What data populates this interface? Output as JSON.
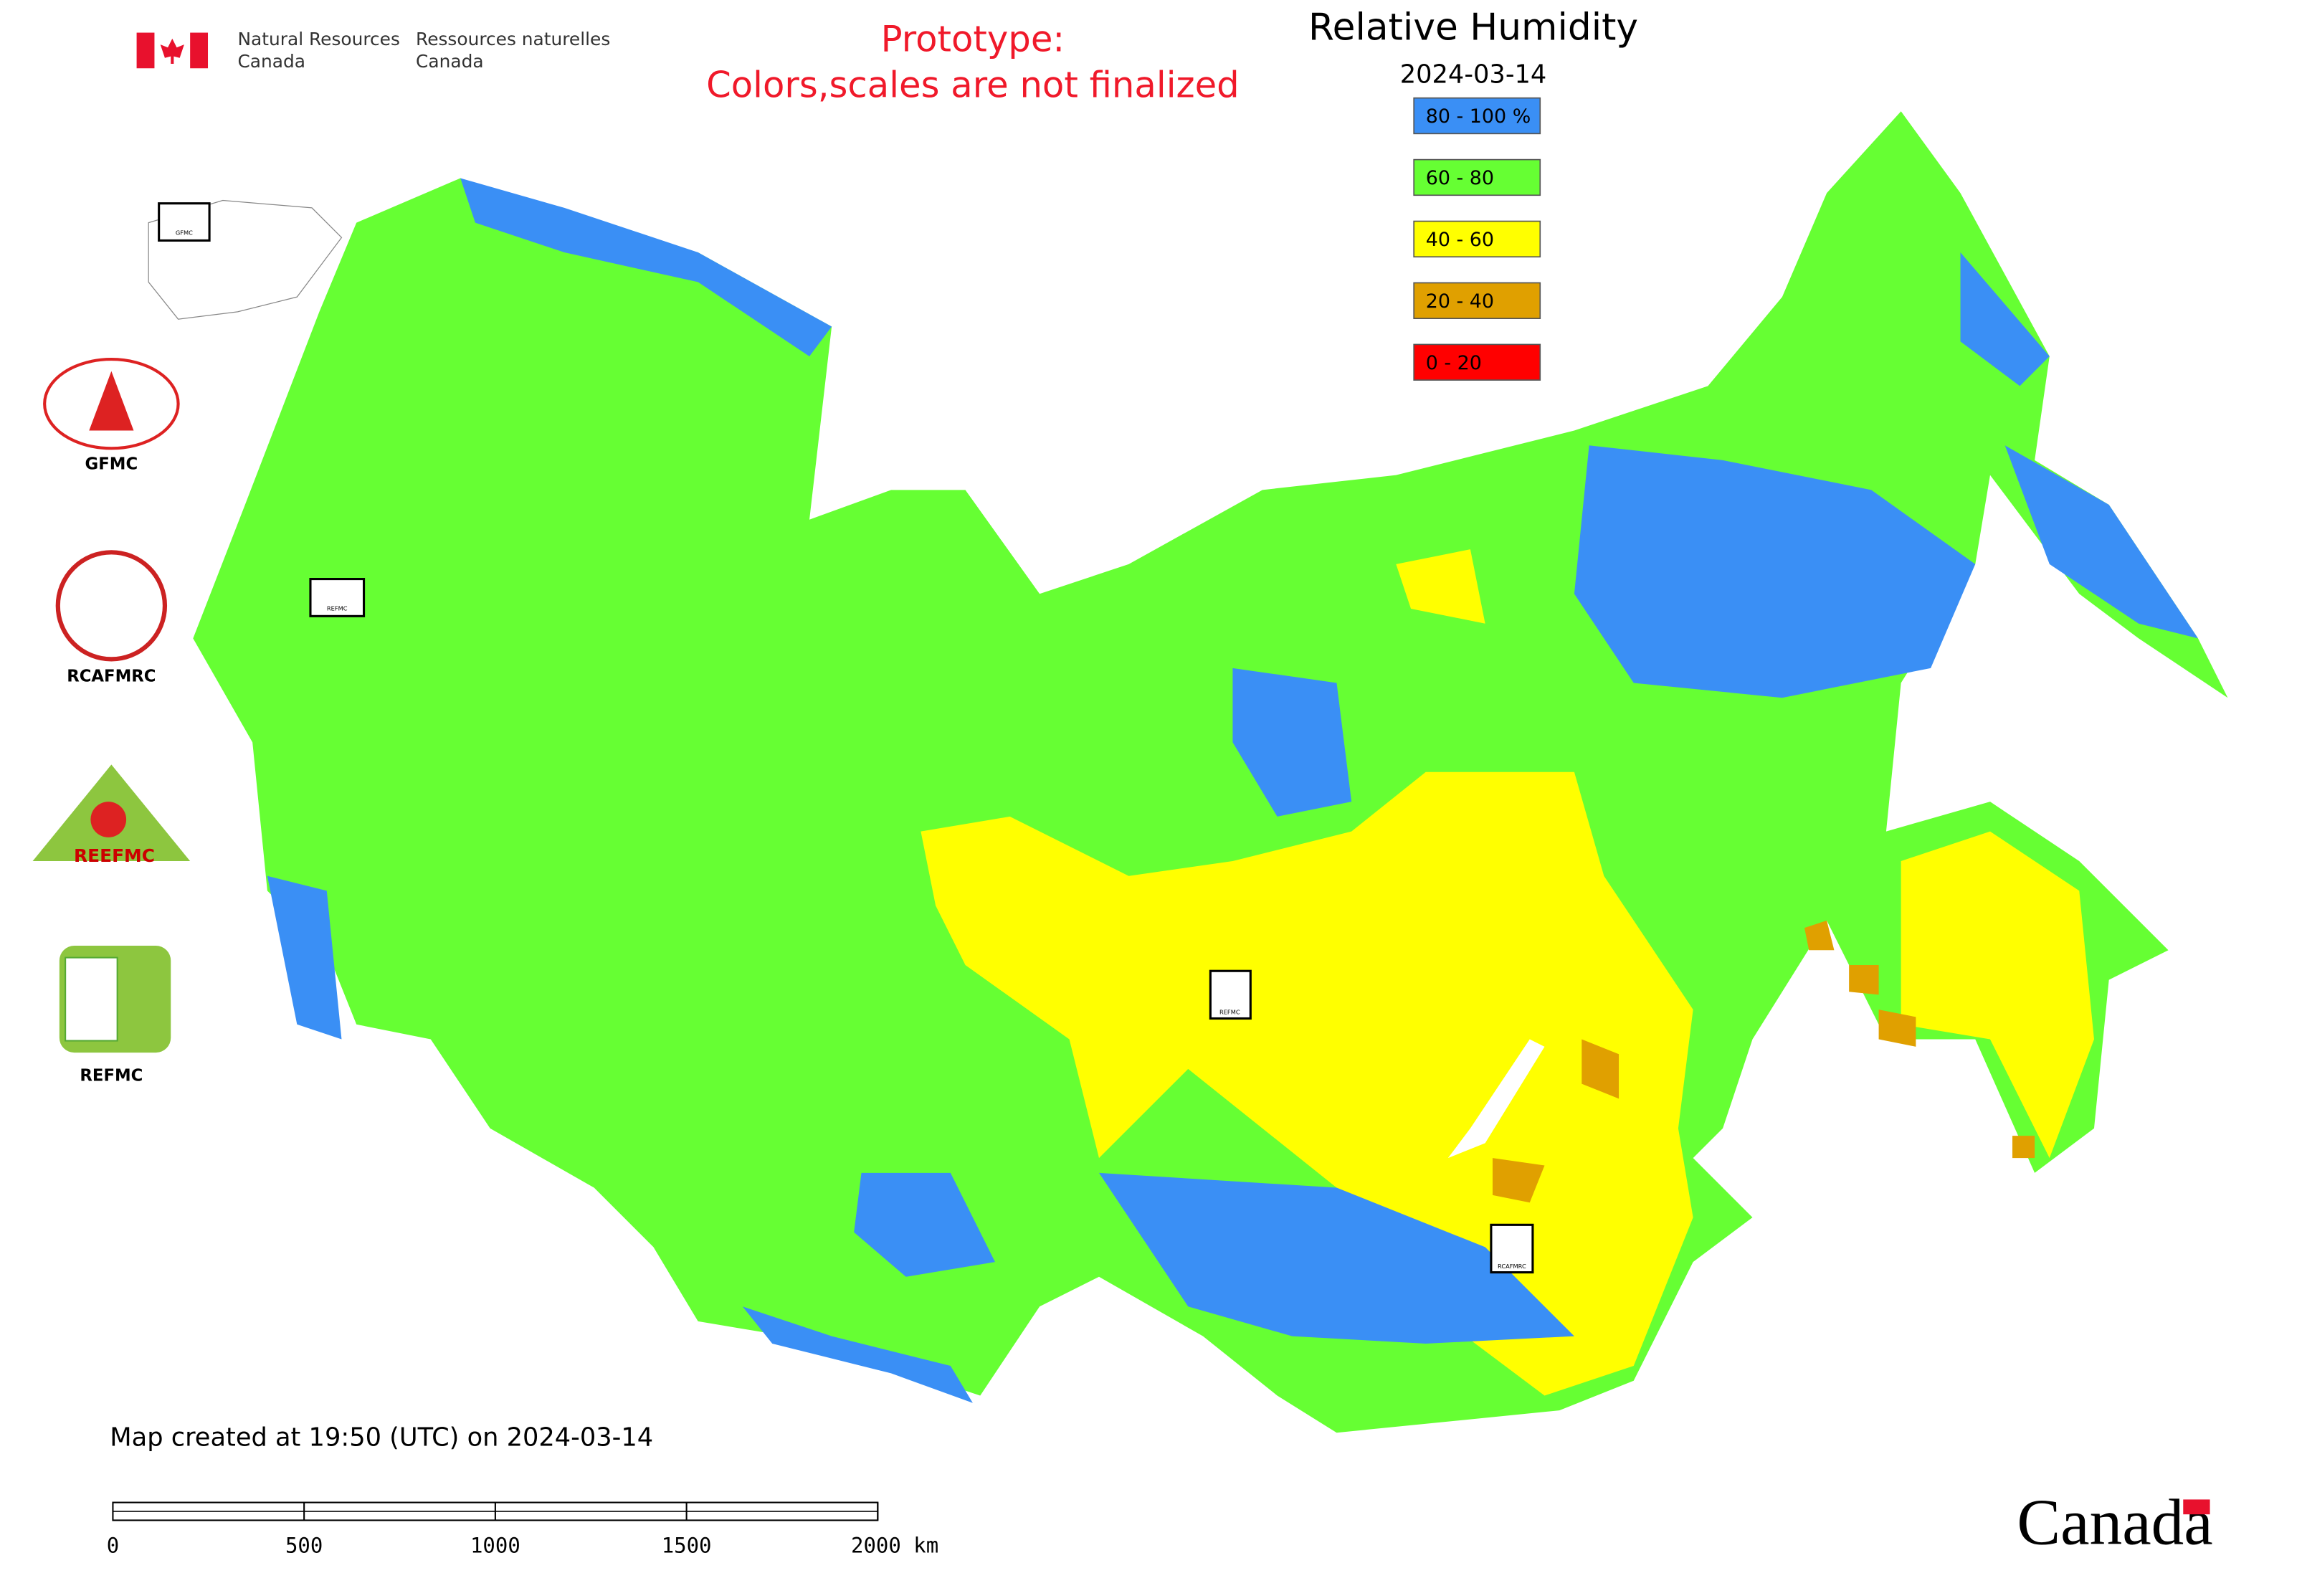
{
  "header": {
    "agency_en": [
      "Natural Resources",
      "Canada"
    ],
    "agency_fr": [
      "Ressources naturelles",
      "Canada"
    ],
    "notice": [
      "Prototype:",
      "Colors,scales are not finalized"
    ],
    "title": "Relative Humidity",
    "date": "2024-03-14"
  },
  "legend": [
    {
      "label": "80 - 100 %",
      "color": "#3a8ff5"
    },
    {
      "label": "60 - 80",
      "color": "#66ff33"
    },
    {
      "label": "40 - 60",
      "color": "#ffff00"
    },
    {
      "label": "20 - 40",
      "color": "#e0a000"
    },
    {
      "label": "0 - 20",
      "color": "#ff0000"
    }
  ],
  "logos": [
    "GFMC",
    "RCAFMRC",
    "REEFMC",
    "REFMC"
  ],
  "map_markers": [
    "GFMC",
    "REFMC",
    "REFMC",
    "RCAFMRC"
  ],
  "footer": {
    "created": "Map created at 19:50 (UTC) on 2024-03-14",
    "wordmark": "Canada"
  },
  "scale_bar": {
    "ticks": [
      0,
      500,
      1000,
      1500,
      {
        "value": 2000,
        "label": "2000 km"
      }
    ]
  }
}
